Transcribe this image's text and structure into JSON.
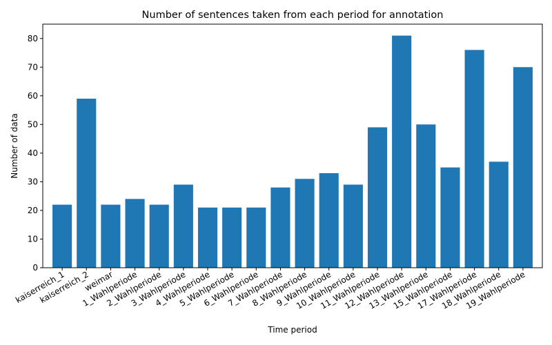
{
  "chart_data": {
    "type": "bar",
    "title": "Number of sentences taken from each period for annotation",
    "xlabel": "Time period",
    "ylabel": "Number of data",
    "categories": [
      "kaiserreich_1",
      "kaiserreich_2",
      "weimar",
      "1_Wahlperiode",
      "2_Wahlperiode",
      "3_Wahlperiode",
      "4_Wahlperiode",
      "5_Wahlperiode",
      "6_Wahlperiode",
      "7_Wahlperiode",
      "8_Wahlperiode",
      "9_Wahlperiode",
      "10_Wahlperiode",
      "11_Wahlperiode",
      "12_Wahlperiode",
      "13_Wahlperiode",
      "15_Wahlperiode",
      "17_Wahlperiode",
      "18_Wahlperiode",
      "19_Wahlperiode"
    ],
    "values": [
      22,
      59,
      22,
      24,
      22,
      29,
      21,
      21,
      21,
      28,
      31,
      33,
      29,
      49,
      81,
      50,
      35,
      76,
      37,
      70
    ],
    "ylim": [
      0,
      85
    ],
    "yticks": [
      0,
      10,
      20,
      30,
      40,
      50,
      60,
      70,
      80
    ],
    "grid": false,
    "color": "#1f77b4"
  }
}
